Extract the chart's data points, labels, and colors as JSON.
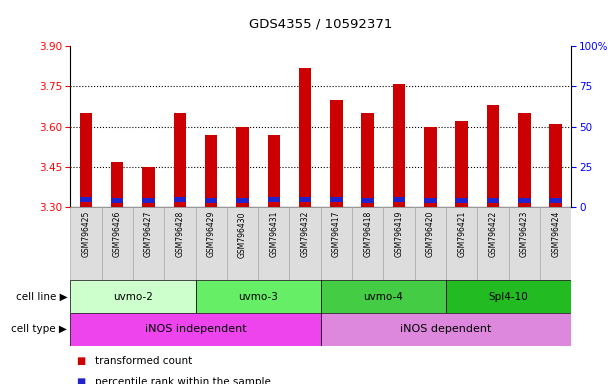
{
  "title": "GDS4355 / 10592371",
  "samples": [
    "GSM796425",
    "GSM796426",
    "GSM796427",
    "GSM796428",
    "GSM796429",
    "GSM796430",
    "GSM796431",
    "GSM796432",
    "GSM796417",
    "GSM796418",
    "GSM796419",
    "GSM796420",
    "GSM796421",
    "GSM796422",
    "GSM796423",
    "GSM796424"
  ],
  "transformed_counts": [
    3.65,
    3.47,
    3.45,
    3.65,
    3.57,
    3.6,
    3.57,
    3.82,
    3.7,
    3.65,
    3.76,
    3.6,
    3.62,
    3.68,
    3.65,
    3.61
  ],
  "percentile_ranks": [
    5,
    4,
    4,
    5,
    4,
    4,
    5,
    5,
    5,
    4,
    5,
    4,
    4,
    4,
    4,
    4
  ],
  "ymin": 3.3,
  "ymax": 3.9,
  "yticks": [
    3.3,
    3.45,
    3.6,
    3.75,
    3.9
  ],
  "right_yticks_vals": [
    0,
    25,
    50,
    75,
    100
  ],
  "right_yticks_labels": [
    "0",
    "25",
    "50",
    "75",
    "100%"
  ],
  "cell_lines": [
    {
      "label": "uvmo-2",
      "start": 0,
      "end": 4,
      "color": "#ccffcc"
    },
    {
      "label": "uvmo-3",
      "start": 4,
      "end": 8,
      "color": "#66ee66"
    },
    {
      "label": "uvmo-4",
      "start": 8,
      "end": 12,
      "color": "#44cc44"
    },
    {
      "label": "Spl4-10",
      "start": 12,
      "end": 16,
      "color": "#22bb22"
    }
  ],
  "cell_types": [
    {
      "label": "iNOS independent",
      "start": 0,
      "end": 8,
      "color": "#ee44ee"
    },
    {
      "label": "iNOS dependent",
      "start": 8,
      "end": 16,
      "color": "#dd88dd"
    }
  ],
  "bar_color": "#cc0000",
  "percentile_color": "#2222cc",
  "bar_width": 0.4,
  "label_bg_color": "#dddddd",
  "label_edge_color": "#aaaaaa",
  "cell_line_label": "cell line",
  "cell_type_label": "cell type",
  "legend_items": [
    {
      "color": "#cc0000",
      "label": "transformed count"
    },
    {
      "color": "#2222cc",
      "label": "percentile rank within the sample"
    }
  ]
}
